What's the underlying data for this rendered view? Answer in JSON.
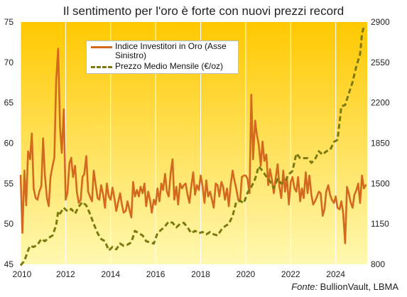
{
  "chart_data": {
    "type": "line",
    "title": "Il sentimento per l'oro è forte con nuovi prezzi record",
    "source_label": "Fonte:",
    "source_text": " BullionVault, LBMA",
    "x_axis": {
      "ticks": [
        2010,
        2012,
        2014,
        2016,
        2018,
        2020,
        2022,
        2024
      ],
      "range": [
        2010,
        2025.4
      ]
    },
    "y_left": {
      "ticks": [
        45,
        50,
        55,
        60,
        65,
        70,
        75
      ],
      "range": [
        45,
        75
      ]
    },
    "y_right": {
      "ticks": [
        800,
        1150,
        1500,
        1850,
        2200,
        2550,
        2900
      ],
      "range": [
        800,
        2900
      ]
    },
    "grid": "vertical at year ticks",
    "legend": "top-left",
    "colors": {
      "sentiment": "#d2691e",
      "price": "#7a7a10",
      "background_top": "#ffc800",
      "background_bottom": "#fff8b0"
    },
    "series": [
      {
        "name": "Indice Investitori in Oro (Asse Sinistro)",
        "axis": "left",
        "style": "solid",
        "points": [
          [
            2010.0,
            56.0
          ],
          [
            2010.08,
            48.9
          ],
          [
            2010.17,
            56.6
          ],
          [
            2010.25,
            52.3
          ],
          [
            2010.33,
            59.0
          ],
          [
            2010.42,
            58.0
          ],
          [
            2010.5,
            61.2
          ],
          [
            2010.58,
            54.4
          ],
          [
            2010.67,
            53.2
          ],
          [
            2010.75,
            53.0
          ],
          [
            2010.83,
            54.0
          ],
          [
            2010.92,
            54.7
          ],
          [
            2011.0,
            60.6
          ],
          [
            2011.08,
            56.0
          ],
          [
            2011.17,
            53.2
          ],
          [
            2011.25,
            52.2
          ],
          [
            2011.33,
            55.8
          ],
          [
            2011.42,
            57.2
          ],
          [
            2011.5,
            58.2
          ],
          [
            2011.58,
            67.8
          ],
          [
            2011.67,
            71.7
          ],
          [
            2011.75,
            62.0
          ],
          [
            2011.83,
            58.8
          ],
          [
            2011.92,
            64.2
          ],
          [
            2012.0,
            53.0
          ],
          [
            2012.08,
            53.8
          ],
          [
            2012.17,
            57.5
          ],
          [
            2012.25,
            58.2
          ],
          [
            2012.33,
            55.8
          ],
          [
            2012.42,
            57.2
          ],
          [
            2012.5,
            54.0
          ],
          [
            2012.58,
            52.6
          ],
          [
            2012.67,
            53.0
          ],
          [
            2012.75,
            55.8
          ],
          [
            2012.83,
            56.2
          ],
          [
            2012.92,
            58.4
          ],
          [
            2013.0,
            54.0
          ],
          [
            2013.08,
            53.4
          ],
          [
            2013.17,
            52.8
          ],
          [
            2013.25,
            56.6
          ],
          [
            2013.33,
            55.0
          ],
          [
            2013.42,
            53.2
          ],
          [
            2013.5,
            53.0
          ],
          [
            2013.58,
            54.8
          ],
          [
            2013.67,
            53.6
          ],
          [
            2013.75,
            52.0
          ],
          [
            2013.83,
            55.0
          ],
          [
            2013.92,
            53.4
          ],
          [
            2014.0,
            53.0
          ],
          [
            2014.08,
            54.5
          ],
          [
            2014.17,
            53.2
          ],
          [
            2014.25,
            51.6
          ],
          [
            2014.33,
            52.6
          ],
          [
            2014.42,
            53.8
          ],
          [
            2014.5,
            52.4
          ],
          [
            2014.58,
            51.4
          ],
          [
            2014.67,
            51.6
          ],
          [
            2014.75,
            52.8
          ],
          [
            2014.83,
            51.8
          ],
          [
            2014.92,
            50.8
          ],
          [
            2015.0,
            55.2
          ],
          [
            2015.08,
            53.4
          ],
          [
            2015.17,
            54.2
          ],
          [
            2015.25,
            53.4
          ],
          [
            2015.33,
            54.6
          ],
          [
            2015.42,
            53.8
          ],
          [
            2015.5,
            55.0
          ],
          [
            2015.58,
            52.2
          ],
          [
            2015.67,
            54.0
          ],
          [
            2015.75,
            53.0
          ],
          [
            2015.83,
            51.4
          ],
          [
            2015.92,
            53.0
          ],
          [
            2016.0,
            52.4
          ],
          [
            2016.08,
            54.4
          ],
          [
            2016.17,
            52.8
          ],
          [
            2016.25,
            55.0
          ],
          [
            2016.33,
            54.2
          ],
          [
            2016.42,
            56.2
          ],
          [
            2016.5,
            54.0
          ],
          [
            2016.58,
            53.4
          ],
          [
            2016.67,
            56.4
          ],
          [
            2016.75,
            58.0
          ],
          [
            2016.83,
            53.0
          ],
          [
            2016.92,
            54.6
          ],
          [
            2017.0,
            52.4
          ],
          [
            2017.08,
            55.0
          ],
          [
            2017.17,
            54.4
          ],
          [
            2017.25,
            54.8
          ],
          [
            2017.33,
            55.0
          ],
          [
            2017.42,
            53.6
          ],
          [
            2017.5,
            52.6
          ],
          [
            2017.58,
            54.6
          ],
          [
            2017.67,
            56.4
          ],
          [
            2017.75,
            53.6
          ],
          [
            2017.83,
            54.8
          ],
          [
            2017.92,
            54.2
          ],
          [
            2018.0,
            56.0
          ],
          [
            2018.08,
            54.8
          ],
          [
            2018.17,
            52.6
          ],
          [
            2018.25,
            55.4
          ],
          [
            2018.33,
            53.4
          ],
          [
            2018.42,
            54.0
          ],
          [
            2018.5,
            53.0
          ],
          [
            2018.58,
            52.0
          ],
          [
            2018.67,
            55.0
          ],
          [
            2018.75,
            54.8
          ],
          [
            2018.83,
            53.4
          ],
          [
            2018.92,
            55.2
          ],
          [
            2019.0,
            54.6
          ],
          [
            2019.08,
            53.0
          ],
          [
            2019.17,
            54.4
          ],
          [
            2019.25,
            52.2
          ],
          [
            2019.33,
            54.8
          ],
          [
            2019.42,
            56.6
          ],
          [
            2019.5,
            55.4
          ],
          [
            2019.58,
            54.4
          ],
          [
            2019.67,
            53.0
          ],
          [
            2019.75,
            52.8
          ],
          [
            2019.83,
            55.8
          ],
          [
            2019.92,
            56.0
          ],
          [
            2020.0,
            56.0
          ],
          [
            2020.08,
            55.6
          ],
          [
            2020.17,
            53.8
          ],
          [
            2020.25,
            66.0
          ],
          [
            2020.33,
            58.0
          ],
          [
            2020.42,
            62.8
          ],
          [
            2020.5,
            61.0
          ],
          [
            2020.58,
            59.8
          ],
          [
            2020.67,
            57.2
          ],
          [
            2020.75,
            60.2
          ],
          [
            2020.83,
            57.8
          ],
          [
            2020.92,
            58.6
          ],
          [
            2021.0,
            54.8
          ],
          [
            2021.08,
            56.8
          ],
          [
            2021.17,
            55.4
          ],
          [
            2021.25,
            53.8
          ],
          [
            2021.33,
            55.6
          ],
          [
            2021.42,
            57.4
          ],
          [
            2021.5,
            54.6
          ],
          [
            2021.58,
            53.2
          ],
          [
            2021.67,
            56.6
          ],
          [
            2021.75,
            54.0
          ],
          [
            2021.83,
            55.8
          ],
          [
            2021.92,
            52.4
          ],
          [
            2022.0,
            55.2
          ],
          [
            2022.08,
            55.8
          ],
          [
            2022.17,
            54.4
          ],
          [
            2022.25,
            54.0
          ],
          [
            2022.33,
            55.8
          ],
          [
            2022.42,
            52.8
          ],
          [
            2022.5,
            54.4
          ],
          [
            2022.58,
            53.2
          ],
          [
            2022.67,
            56.4
          ],
          [
            2022.75,
            53.8
          ],
          [
            2022.83,
            56.0
          ],
          [
            2022.92,
            53.6
          ],
          [
            2023.0,
            52.4
          ],
          [
            2023.08,
            52.8
          ],
          [
            2023.17,
            53.4
          ],
          [
            2023.25,
            54.0
          ],
          [
            2023.33,
            53.8
          ],
          [
            2023.42,
            51.0
          ],
          [
            2023.5,
            51.8
          ],
          [
            2023.58,
            54.0
          ],
          [
            2023.67,
            54.8
          ],
          [
            2023.75,
            53.6
          ],
          [
            2023.83,
            53.0
          ],
          [
            2023.92,
            52.6
          ],
          [
            2024.0,
            53.4
          ],
          [
            2024.08,
            52.0
          ],
          [
            2024.17,
            51.8
          ],
          [
            2024.25,
            52.8
          ],
          [
            2024.33,
            51.4
          ],
          [
            2024.42,
            47.6
          ],
          [
            2024.5,
            54.6
          ],
          [
            2024.58,
            53.8
          ],
          [
            2024.67,
            52.6
          ],
          [
            2024.75,
            52.0
          ],
          [
            2024.83,
            53.6
          ],
          [
            2024.92,
            54.2
          ],
          [
            2025.0,
            55.0
          ],
          [
            2025.08,
            52.6
          ],
          [
            2025.17,
            56.0
          ],
          [
            2025.25,
            54.4
          ],
          [
            2025.33,
            54.8
          ]
        ]
      },
      {
        "name": "Prezzo Medio Mensile (€/oz)",
        "axis": "right",
        "style": "dashed",
        "points": [
          [
            2010.0,
            790
          ],
          [
            2010.17,
            830
          ],
          [
            2010.33,
            920
          ],
          [
            2010.42,
            960
          ],
          [
            2010.58,
            950
          ],
          [
            2010.75,
            970
          ],
          [
            2010.92,
            1020
          ],
          [
            2011.08,
            1000
          ],
          [
            2011.25,
            1030
          ],
          [
            2011.42,
            1050
          ],
          [
            2011.58,
            1140
          ],
          [
            2011.67,
            1260
          ],
          [
            2011.75,
            1240
          ],
          [
            2011.92,
            1290
          ],
          [
            2012.08,
            1260
          ],
          [
            2012.25,
            1280
          ],
          [
            2012.42,
            1240
          ],
          [
            2012.58,
            1300
          ],
          [
            2012.75,
            1340
          ],
          [
            2012.92,
            1310
          ],
          [
            2013.08,
            1240
          ],
          [
            2013.25,
            1150
          ],
          [
            2013.42,
            1070
          ],
          [
            2013.58,
            1020
          ],
          [
            2013.75,
            1000
          ],
          [
            2013.92,
            920
          ],
          [
            2014.08,
            950
          ],
          [
            2014.25,
            930
          ],
          [
            2014.42,
            980
          ],
          [
            2014.58,
            960
          ],
          [
            2014.75,
            970
          ],
          [
            2014.92,
            990
          ],
          [
            2015.08,
            1090
          ],
          [
            2015.25,
            1070
          ],
          [
            2015.42,
            1050
          ],
          [
            2015.58,
            1000
          ],
          [
            2015.75,
            990
          ],
          [
            2015.92,
            980
          ],
          [
            2016.08,
            1070
          ],
          [
            2016.25,
            1100
          ],
          [
            2016.42,
            1130
          ],
          [
            2016.58,
            1170
          ],
          [
            2016.75,
            1160
          ],
          [
            2016.92,
            1120
          ],
          [
            2017.08,
            1150
          ],
          [
            2017.25,
            1160
          ],
          [
            2017.42,
            1120
          ],
          [
            2017.58,
            1070
          ],
          [
            2017.75,
            1090
          ],
          [
            2017.92,
            1070
          ],
          [
            2018.08,
            1080
          ],
          [
            2018.25,
            1060
          ],
          [
            2018.42,
            1080
          ],
          [
            2018.58,
            1060
          ],
          [
            2018.75,
            1050
          ],
          [
            2018.92,
            1100
          ],
          [
            2019.08,
            1130
          ],
          [
            2019.25,
            1150
          ],
          [
            2019.42,
            1220
          ],
          [
            2019.58,
            1340
          ],
          [
            2019.75,
            1350
          ],
          [
            2019.92,
            1330
          ],
          [
            2020.08,
            1420
          ],
          [
            2020.25,
            1470
          ],
          [
            2020.42,
            1540
          ],
          [
            2020.58,
            1650
          ],
          [
            2020.75,
            1610
          ],
          [
            2020.92,
            1560
          ],
          [
            2021.08,
            1520
          ],
          [
            2021.25,
            1460
          ],
          [
            2021.42,
            1540
          ],
          [
            2021.58,
            1500
          ],
          [
            2021.75,
            1520
          ],
          [
            2021.92,
            1580
          ],
          [
            2022.08,
            1610
          ],
          [
            2022.25,
            1760
          ],
          [
            2022.42,
            1720
          ],
          [
            2022.58,
            1720
          ],
          [
            2022.75,
            1720
          ],
          [
            2022.92,
            1680
          ],
          [
            2023.08,
            1710
          ],
          [
            2023.25,
            1780
          ],
          [
            2023.42,
            1750
          ],
          [
            2023.58,
            1780
          ],
          [
            2023.75,
            1790
          ],
          [
            2023.92,
            1860
          ],
          [
            2024.08,
            1880
          ],
          [
            2024.25,
            2170
          ],
          [
            2024.42,
            2180
          ],
          [
            2024.58,
            2280
          ],
          [
            2024.75,
            2380
          ],
          [
            2024.92,
            2520
          ],
          [
            2025.08,
            2620
          ],
          [
            2025.17,
            2800
          ],
          [
            2025.25,
            2860
          ],
          [
            2025.33,
            2860
          ]
        ]
      }
    ]
  }
}
